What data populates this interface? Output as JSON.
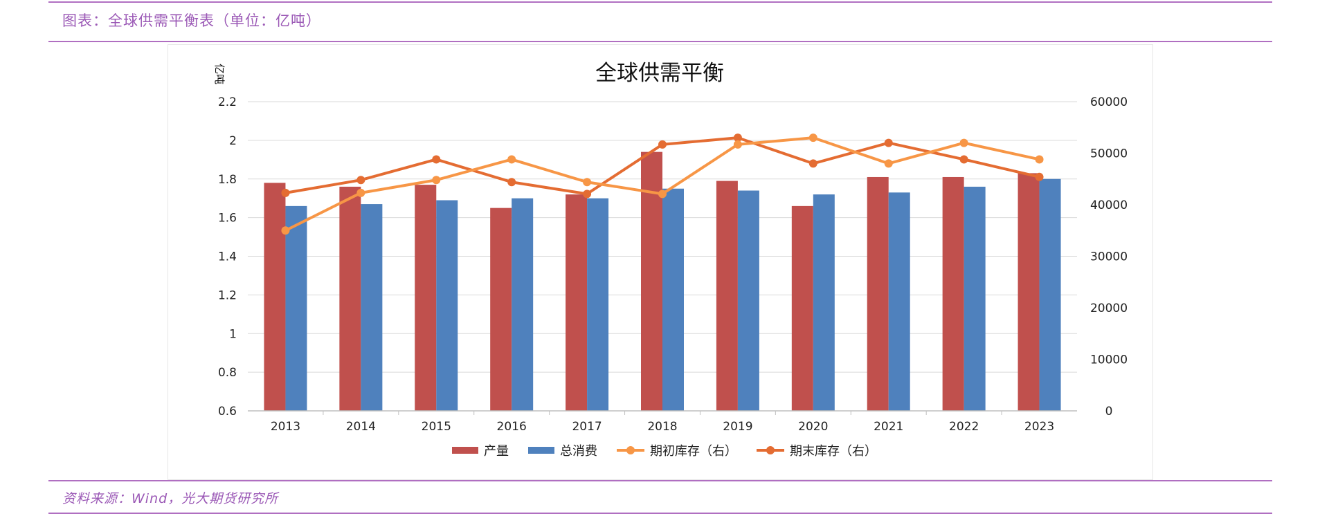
{
  "header": {
    "caption": "图表：全球供需平衡表（单位：亿吨）"
  },
  "footer": {
    "source": "资料来源：Wind，光大期货研究所"
  },
  "colors": {
    "production": "#c0504d",
    "consumption": "#4f81bd",
    "begin_stock": "#f79646",
    "end_stock": "#e46c32",
    "rule": "#b06fc1",
    "caption": "#9b59b6"
  },
  "chart_data": {
    "type": "bar",
    "title": "全球供需平衡",
    "ylabel": "亿吨",
    "categories": [
      "2013",
      "2014",
      "2015",
      "2016",
      "2017",
      "2018",
      "2019",
      "2020",
      "2021",
      "2022",
      "2023"
    ],
    "ylim": [
      0.6,
      2.2
    ],
    "yticks": [
      "2.2",
      "2",
      "1.8",
      "1.6",
      "1.4",
      "1.2",
      "1",
      "0.8",
      "0.6"
    ],
    "y2lim": [
      0,
      60000
    ],
    "y2ticks": [
      "60000",
      "50000",
      "40000",
      "30000",
      "20000",
      "10000",
      "0"
    ],
    "grid": true,
    "legend_position": "bottom",
    "series": [
      {
        "name": "产量",
        "type": "bar",
        "axis": "left",
        "values": [
          1.78,
          1.76,
          1.77,
          1.65,
          1.72,
          1.94,
          1.79,
          1.66,
          1.81,
          1.81,
          1.83
        ]
      },
      {
        "name": "总消费",
        "type": "bar",
        "axis": "left",
        "values": [
          1.66,
          1.67,
          1.69,
          1.7,
          1.7,
          1.75,
          1.74,
          1.72,
          1.73,
          1.76,
          1.8
        ]
      },
      {
        "name": "期初库存（右）",
        "type": "line",
        "axis": "right",
        "values": [
          35000,
          42300,
          44800,
          48800,
          44400,
          42100,
          51700,
          53000,
          48000,
          52000,
          48800
        ]
      },
      {
        "name": "期末库存（右）",
        "type": "line",
        "axis": "right",
        "values": [
          42300,
          44800,
          48800,
          44400,
          42100,
          51700,
          53000,
          48000,
          52000,
          48800,
          45400
        ]
      }
    ]
  }
}
